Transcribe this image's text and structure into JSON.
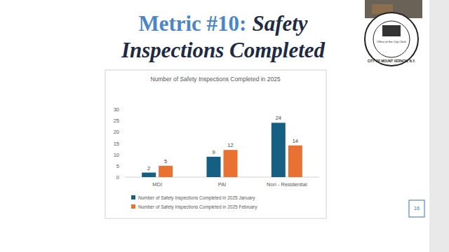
{
  "slide": {
    "heading_prefix": "Metric #10:",
    "heading_lines": [
      "Safety",
      "Inspections Completed"
    ],
    "page_number": "16",
    "logo_texts": [
      "Office of the City Clerk",
      "CITY OF MOUNT VERNON, N.Y."
    ]
  },
  "chart_data": {
    "type": "bar",
    "title": "Number of Safety Inspections Completed in 2025",
    "categories": [
      "MDI",
      "PAI",
      "Non - Residential"
    ],
    "series": [
      {
        "name": "Number of Safety Inspections Completed in 2025 January",
        "color": "#156082",
        "values": [
          2,
          9,
          24
        ]
      },
      {
        "name": "Number of Safety Inspections Completed in 2025 February",
        "color": "#e97132",
        "values": [
          5,
          12,
          14
        ]
      }
    ],
    "ylim": [
      0,
      30
    ],
    "yticks": [
      0,
      5,
      10,
      15,
      20,
      25,
      30
    ],
    "grid": false,
    "data_labels": true,
    "legend": "bottom"
  }
}
